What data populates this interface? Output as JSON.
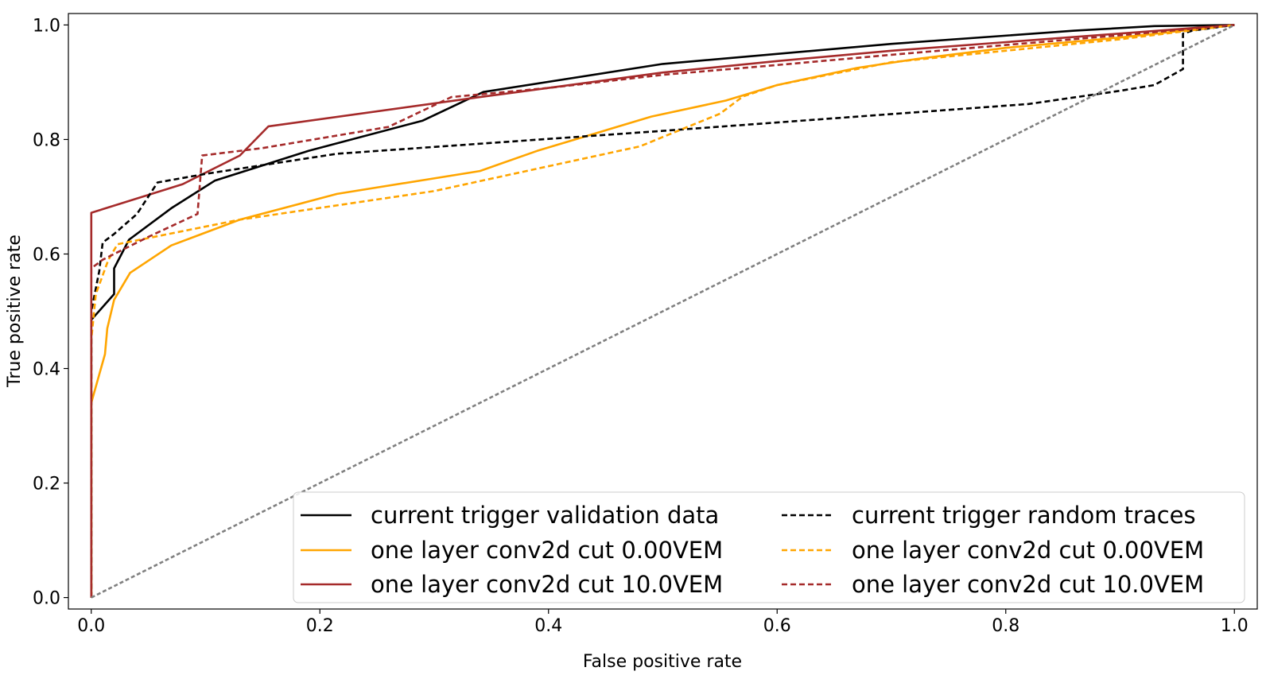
{
  "chart_data": {
    "type": "line",
    "xlabel": "False positive rate",
    "ylabel": "True positive rate",
    "xlim": [
      -0.02,
      1.02
    ],
    "ylim": [
      -0.02,
      1.02
    ],
    "xticks": [
      "0.0",
      "0.2",
      "0.4",
      "0.6",
      "0.8",
      "1.0"
    ],
    "yticks": [
      "0.0",
      "0.2",
      "0.4",
      "0.6",
      "0.8",
      "1.0"
    ],
    "xtick_values": [
      0.0,
      0.2,
      0.4,
      0.6,
      0.8,
      1.0
    ],
    "ytick_values": [
      0.0,
      0.2,
      0.4,
      0.6,
      0.8,
      1.0
    ],
    "grid": false,
    "legend_position": "lower-right",
    "legend_columns": 2,
    "series": [
      {
        "name": "current trigger validation data",
        "color": "#000000",
        "style": "solid",
        "points": [
          [
            0,
            0
          ],
          [
            0,
            0.485
          ],
          [
            0.02,
            0.53
          ],
          [
            0.02,
            0.575
          ],
          [
            0.033,
            0.625
          ],
          [
            0.07,
            0.68
          ],
          [
            0.108,
            0.728
          ],
          [
            0.19,
            0.78
          ],
          [
            0.29,
            0.833
          ],
          [
            0.343,
            0.883
          ],
          [
            0.5,
            0.932
          ],
          [
            0.7,
            0.967
          ],
          [
            0.86,
            0.99
          ],
          [
            0.93,
            0.998
          ],
          [
            1,
            1
          ]
        ]
      },
      {
        "name": "one layer conv2d cut 0.00VEM",
        "color": "#ffa500",
        "style": "solid",
        "points": [
          [
            0,
            0
          ],
          [
            0,
            0.34
          ],
          [
            0.012,
            0.425
          ],
          [
            0.014,
            0.47
          ],
          [
            0.02,
            0.52
          ],
          [
            0.034,
            0.567
          ],
          [
            0.07,
            0.615
          ],
          [
            0.13,
            0.66
          ],
          [
            0.215,
            0.705
          ],
          [
            0.34,
            0.745
          ],
          [
            0.39,
            0.78
          ],
          [
            0.49,
            0.84
          ],
          [
            0.555,
            0.868
          ],
          [
            0.6,
            0.895
          ],
          [
            0.67,
            0.925
          ],
          [
            0.72,
            0.94
          ],
          [
            0.8,
            0.96
          ],
          [
            0.9,
            0.978
          ],
          [
            1,
            1
          ]
        ]
      },
      {
        "name": "one layer conv2d cut 10.0VEM",
        "color": "#a52a2a",
        "style": "solid",
        "points": [
          [
            0,
            0
          ],
          [
            0,
            0.672
          ],
          [
            0.08,
            0.722
          ],
          [
            0.13,
            0.772
          ],
          [
            0.155,
            0.823
          ],
          [
            0.34,
            0.874
          ],
          [
            0.4,
            0.89
          ],
          [
            0.5,
            0.917
          ],
          [
            0.6,
            0.937
          ],
          [
            0.7,
            0.955
          ],
          [
            0.8,
            0.97
          ],
          [
            0.9,
            0.985
          ],
          [
            1,
            1
          ]
        ]
      },
      {
        "name": "current trigger random traces",
        "color": "#000000",
        "style": "dashed",
        "points": [
          [
            0,
            0
          ],
          [
            0,
            0.5
          ],
          [
            0.007,
            0.57
          ],
          [
            0.01,
            0.62
          ],
          [
            0.02,
            0.635
          ],
          [
            0.04,
            0.67
          ],
          [
            0.058,
            0.725
          ],
          [
            0.1,
            0.74
          ],
          [
            0.215,
            0.775
          ],
          [
            0.5,
            0.815
          ],
          [
            0.82,
            0.862
          ],
          [
            0.9,
            0.885
          ],
          [
            0.93,
            0.895
          ],
          [
            0.955,
            0.923
          ],
          [
            0.955,
            0.985
          ],
          [
            0.963,
            0.99
          ],
          [
            1,
            1
          ]
        ]
      },
      {
        "name": "one layer conv2d cut 0.00VEM",
        "color": "#ffa500",
        "style": "dashed",
        "points": [
          [
            0,
            0
          ],
          [
            0,
            0.45
          ],
          [
            0.004,
            0.53
          ],
          [
            0.015,
            0.59
          ],
          [
            0.023,
            0.617
          ],
          [
            0.13,
            0.66
          ],
          [
            0.3,
            0.71
          ],
          [
            0.48,
            0.788
          ],
          [
            0.55,
            0.845
          ],
          [
            0.57,
            0.875
          ],
          [
            0.6,
            0.895
          ],
          [
            0.7,
            0.935
          ],
          [
            0.8,
            0.955
          ],
          [
            0.9,
            0.975
          ],
          [
            1,
            1
          ]
        ]
      },
      {
        "name": "one layer conv2d cut 10.0VEM",
        "color": "#a52a2a",
        "style": "dashed",
        "points": [
          [
            0,
            0
          ],
          [
            0,
            0.575
          ],
          [
            0.01,
            0.59
          ],
          [
            0.05,
            0.63
          ],
          [
            0.093,
            0.67
          ],
          [
            0.097,
            0.772
          ],
          [
            0.15,
            0.785
          ],
          [
            0.26,
            0.822
          ],
          [
            0.315,
            0.874
          ],
          [
            0.4,
            0.89
          ],
          [
            0.5,
            0.913
          ],
          [
            0.6,
            0.93
          ],
          [
            0.7,
            0.948
          ],
          [
            0.8,
            0.965
          ],
          [
            0.9,
            0.982
          ],
          [
            1,
            1
          ]
        ]
      },
      {
        "name": "",
        "color": "#808080",
        "style": "dashed",
        "points": [
          [
            0,
            0
          ],
          [
            1,
            1
          ]
        ]
      }
    ]
  }
}
